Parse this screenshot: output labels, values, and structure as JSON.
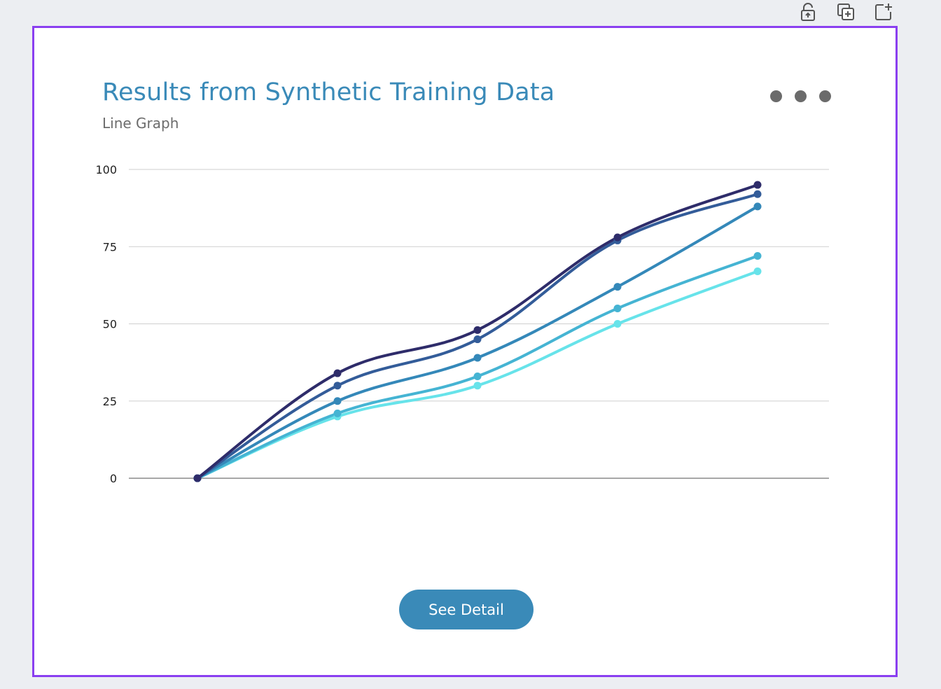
{
  "toolbar": {
    "icons": [
      "lock-open-icon",
      "duplicate-icon",
      "add-page-icon"
    ]
  },
  "card": {
    "title": "Results from Synthetic Training Data",
    "subtitle": "Line Graph",
    "button_label": "See Detail"
  },
  "colors": {
    "accent": "#3a8ab8",
    "frame_border": "#8a3ff0",
    "background": "#eceef2"
  },
  "chart_data": {
    "type": "line",
    "title": "Results from Synthetic Training Data",
    "subtitle": "Line Graph",
    "xlabel": "",
    "ylabel": "",
    "x": [
      0,
      1,
      2,
      3,
      4
    ],
    "ylim": [
      0,
      100
    ],
    "yticks": [
      "0",
      "25",
      "50",
      "75",
      "100"
    ],
    "grid": true,
    "legend": "none",
    "series": [
      {
        "color": "#67e3ea",
        "values": [
          0,
          20,
          30,
          50,
          67
        ]
      },
      {
        "color": "#45b4d3",
        "values": [
          0,
          21,
          33,
          55,
          72
        ]
      },
      {
        "color": "#3488b9",
        "values": [
          0,
          25,
          39,
          62,
          88
        ]
      },
      {
        "color": "#335c99",
        "values": [
          0,
          30,
          45,
          77,
          92
        ]
      },
      {
        "color": "#2e2c6a",
        "values": [
          0,
          34,
          48,
          78,
          95
        ]
      }
    ]
  }
}
